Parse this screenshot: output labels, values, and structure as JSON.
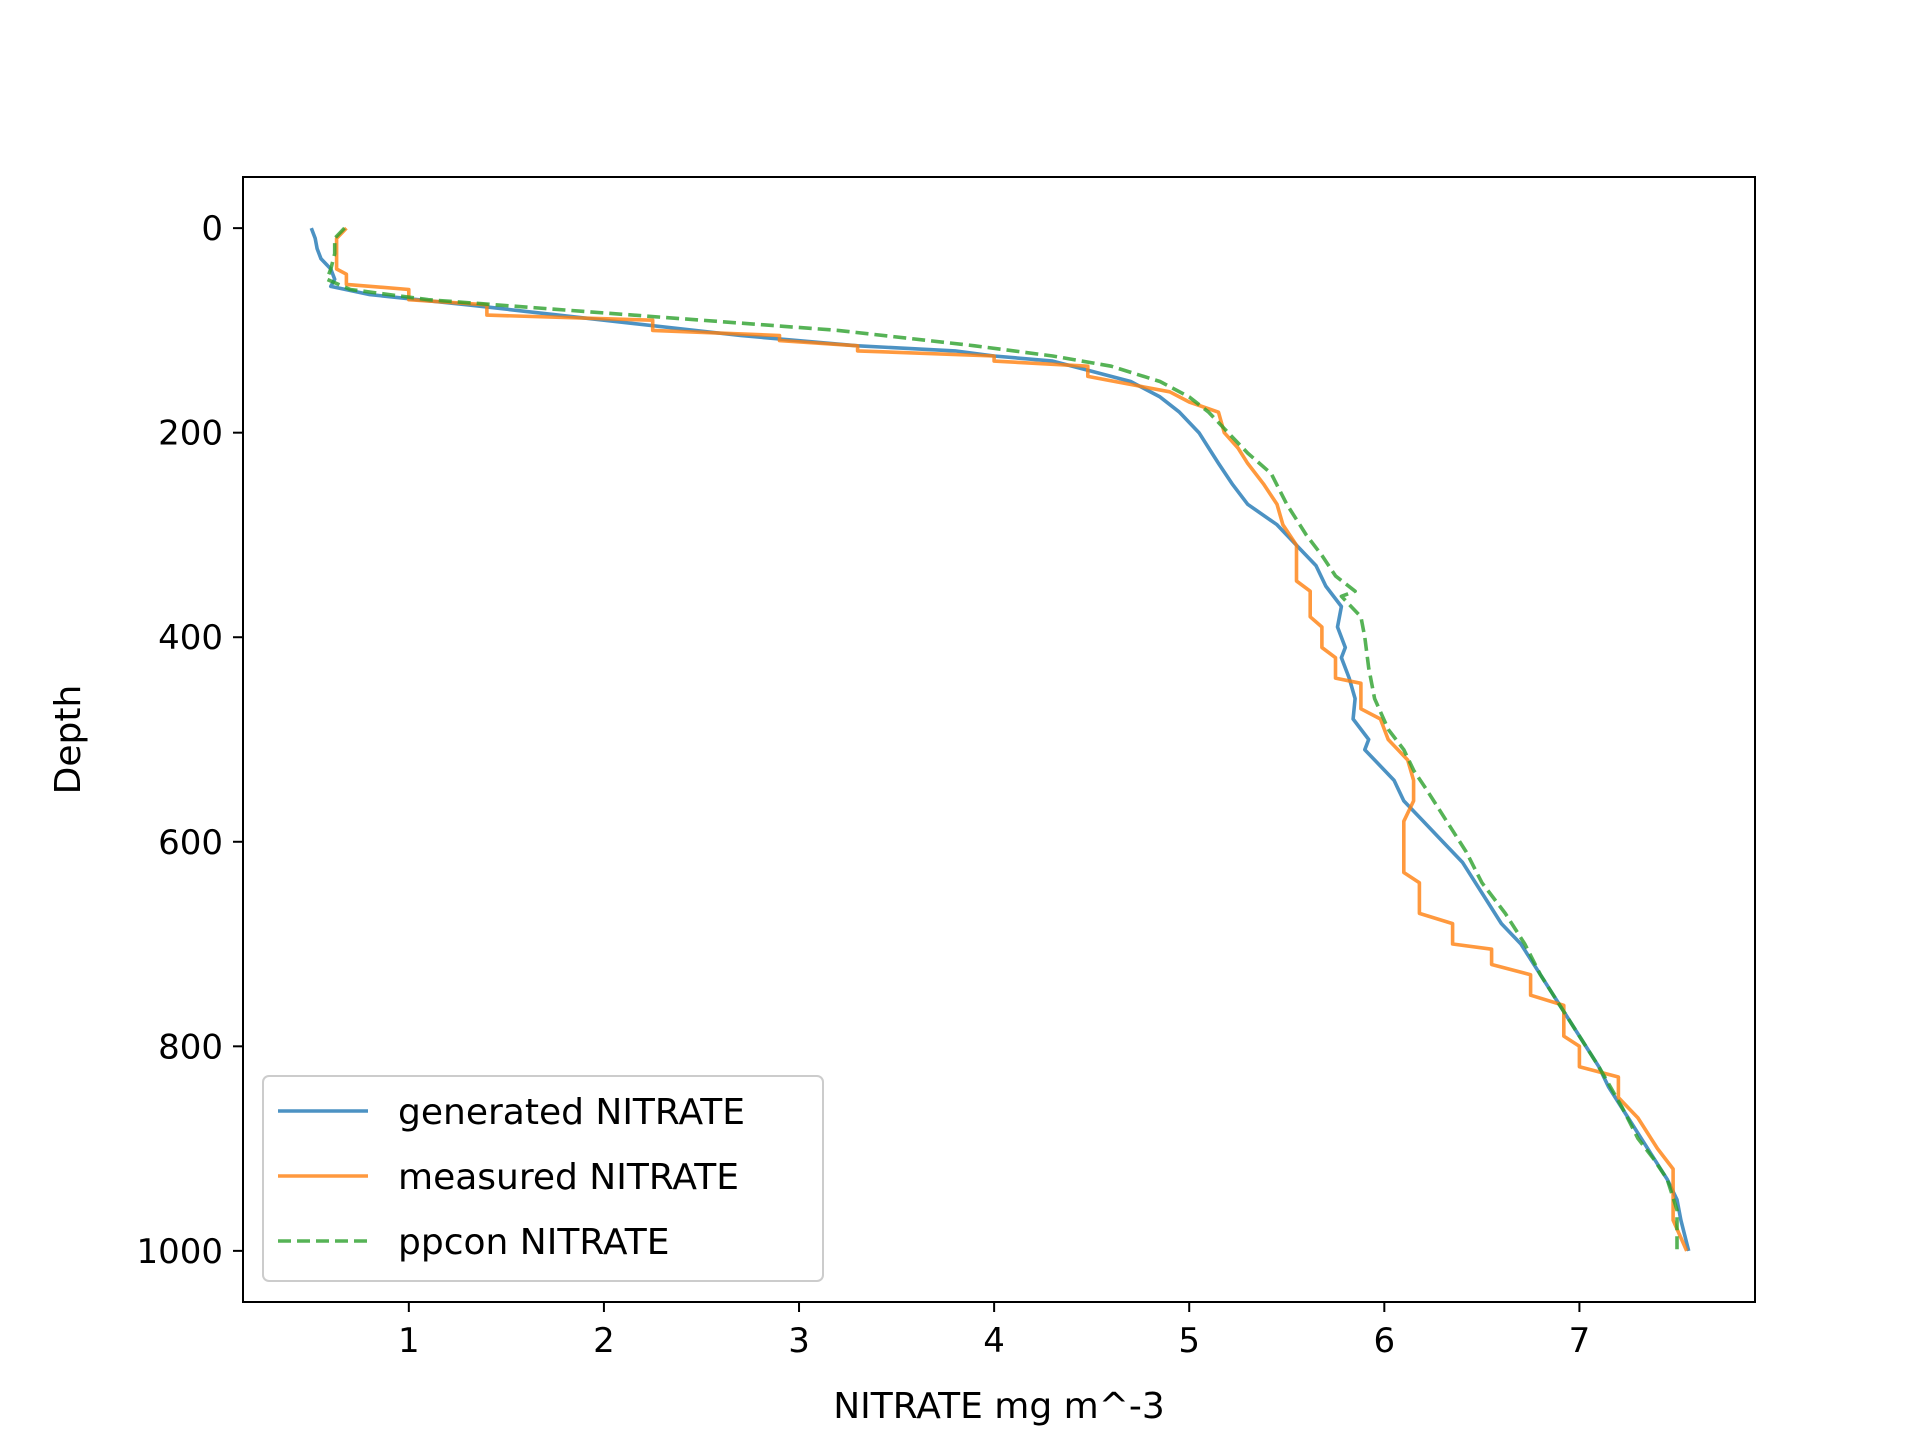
{
  "chart_data": {
    "type": "line",
    "title": "",
    "xlabel": "NITRATE mg m^-3",
    "ylabel": "Depth",
    "xlim": [
      0.15,
      7.9
    ],
    "ylim": [
      1050,
      -50
    ],
    "y_inverted": true,
    "grid": false,
    "legend_position": "lower-left",
    "x_ticks": [
      1,
      2,
      3,
      4,
      5,
      6,
      7
    ],
    "x_tick_labels": [
      "1",
      "2",
      "3",
      "4",
      "5",
      "6",
      "7"
    ],
    "y_ticks": [
      0,
      200,
      400,
      600,
      800,
      1000
    ],
    "y_tick_labels": [
      "0",
      "200",
      "400",
      "600",
      "800",
      "1000"
    ],
    "series": [
      {
        "name": "generated NITRATE",
        "color": "#1f77b4",
        "style": "solid",
        "x": [
          0.5,
          0.52,
          0.53,
          0.55,
          0.6,
          0.62,
          0.6,
          0.8,
          1.3,
          2.0,
          2.7,
          3.3,
          3.8,
          4.0,
          4.3,
          4.5,
          4.7,
          4.85,
          4.95,
          5.05,
          5.1,
          5.15,
          5.22,
          5.3,
          5.45,
          5.55,
          5.65,
          5.7,
          5.78,
          5.76,
          5.8,
          5.78,
          5.82,
          5.85,
          5.84,
          5.92,
          5.9,
          6.05,
          6.1,
          6.2,
          6.3,
          6.4,
          6.5,
          6.6,
          6.7,
          6.8,
          6.9,
          7.0,
          7.1,
          7.15,
          7.25,
          7.35,
          7.45,
          7.5,
          7.52,
          7.56
        ],
        "y": [
          0,
          10,
          20,
          30,
          40,
          50,
          57,
          65,
          75,
          90,
          105,
          115,
          120,
          125,
          130,
          140,
          150,
          165,
          180,
          200,
          215,
          230,
          250,
          270,
          290,
          310,
          330,
          350,
          370,
          390,
          410,
          420,
          440,
          460,
          480,
          500,
          510,
          540,
          560,
          580,
          600,
          620,
          650,
          680,
          700,
          730,
          760,
          790,
          820,
          840,
          870,
          900,
          930,
          950,
          970,
          1000
        ]
      },
      {
        "name": "measured NITRATE",
        "color": "#ff7f0e",
        "style": "solid",
        "x": [
          0.68,
          0.63,
          0.63,
          0.68,
          0.68,
          1.0,
          1.0,
          1.4,
          1.4,
          2.25,
          2.25,
          2.9,
          2.9,
          3.3,
          3.3,
          4.0,
          4.0,
          4.48,
          4.48,
          4.9,
          5.0,
          5.15,
          5.18,
          5.25,
          5.3,
          5.38,
          5.45,
          5.48,
          5.55,
          5.55,
          5.62,
          5.62,
          5.68,
          5.68,
          5.75,
          5.75,
          5.88,
          5.88,
          5.98,
          6.02,
          6.12,
          6.15,
          6.15,
          6.1,
          6.1,
          6.18,
          6.18,
          6.35,
          6.35,
          6.55,
          6.55,
          6.75,
          6.75,
          6.92,
          6.92,
          7.0,
          7.0,
          7.2,
          7.2,
          7.3,
          7.4,
          7.48,
          7.48,
          7.55
        ],
        "y": [
          0,
          10,
          40,
          45,
          55,
          60,
          70,
          75,
          85,
          90,
          100,
          105,
          110,
          115,
          120,
          125,
          130,
          135,
          145,
          160,
          170,
          180,
          200,
          215,
          230,
          250,
          270,
          290,
          310,
          345,
          355,
          380,
          390,
          410,
          420,
          440,
          445,
          470,
          480,
          500,
          520,
          540,
          560,
          580,
          630,
          640,
          670,
          680,
          700,
          705,
          720,
          730,
          750,
          760,
          790,
          800,
          820,
          830,
          850,
          870,
          900,
          920,
          970,
          1000
        ]
      },
      {
        "name": "ppcon NITRATE",
        "color": "#2ca02c",
        "style": "dashed",
        "x": [
          0.67,
          0.62,
          0.62,
          0.6,
          0.58,
          0.7,
          1.1,
          1.8,
          2.5,
          3.2,
          3.9,
          4.3,
          4.6,
          4.85,
          5.0,
          5.1,
          5.2,
          5.3,
          5.42,
          5.5,
          5.6,
          5.68,
          5.75,
          5.85,
          5.78,
          5.88,
          5.9,
          5.92,
          5.95,
          6.02,
          6.1,
          6.15,
          6.22,
          6.32,
          6.42,
          6.5,
          6.62,
          6.72,
          6.8,
          6.9,
          7.0,
          7.1,
          7.22,
          7.3,
          7.38,
          7.45,
          7.5,
          7.5
        ],
        "y": [
          0,
          10,
          25,
          40,
          50,
          60,
          70,
          80,
          90,
          100,
          115,
          125,
          135,
          150,
          165,
          180,
          200,
          220,
          240,
          270,
          300,
          320,
          340,
          355,
          360,
          380,
          400,
          430,
          460,
          490,
          510,
          530,
          550,
          580,
          610,
          640,
          670,
          700,
          730,
          760,
          790,
          820,
          860,
          890,
          910,
          930,
          960,
          1000
        ]
      }
    ]
  }
}
